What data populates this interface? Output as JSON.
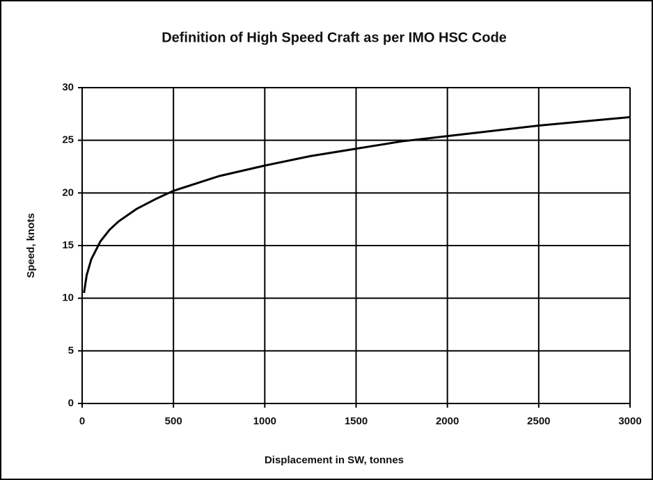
{
  "chart_data": {
    "type": "line",
    "title": "Definition of High Speed Craft as per IMO HSC Code",
    "x_label": "Displacement in SW, tonnes",
    "y_label": "Speed, knots",
    "x": [
      10,
      25,
      50,
      100,
      150,
      200,
      300,
      400,
      500,
      750,
      1000,
      1250,
      1500,
      1750,
      2000,
      2500,
      3000
    ],
    "series": [
      {
        "name": "Speed",
        "color": "#000000",
        "values": [
          10.5,
          12.2,
          13.7,
          15.4,
          16.5,
          17.3,
          18.5,
          19.4,
          20.2,
          21.6,
          22.6,
          23.5,
          24.2,
          24.9,
          25.4,
          26.4,
          27.2
        ]
      }
    ],
    "xlim": [
      0,
      3000
    ],
    "xticks": [
      0,
      500,
      1000,
      1500,
      2000,
      2500,
      3000
    ],
    "ylim": [
      0,
      30
    ],
    "yticks": [
      0,
      5,
      10,
      15,
      20,
      25,
      30
    ],
    "grid": true
  }
}
